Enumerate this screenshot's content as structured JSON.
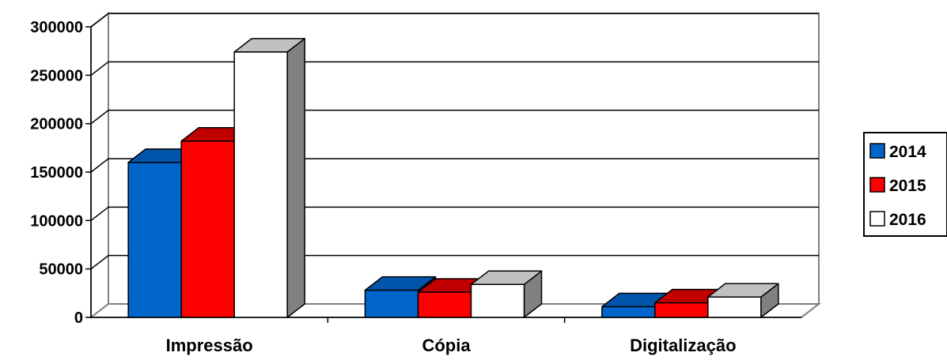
{
  "chart_data": {
    "type": "bar",
    "style": "3d-clustered-column",
    "categories": [
      "Impressão",
      "Cópia",
      "Digitalização"
    ],
    "series": [
      {
        "name": "2014",
        "values": [
          160000,
          28000,
          11000
        ],
        "color": "#0066cc",
        "top_color": "#0055aa",
        "side_color": "#003f80"
      },
      {
        "name": "2015",
        "values": [
          182000,
          26000,
          15000
        ],
        "color": "#ff0000",
        "top_color": "#c00000",
        "side_color": "#a00000"
      },
      {
        "name": "2016",
        "values": [
          274000,
          34000,
          21000
        ],
        "color": "#ffffff",
        "top_color": "#c0c0c0",
        "side_color": "#808080"
      }
    ],
    "yticks": [
      "0",
      "50000",
      "100000",
      "150000",
      "200000",
      "250000",
      "300000"
    ],
    "ylim": [
      0,
      300000
    ],
    "grid": true,
    "legend_position": "right"
  }
}
